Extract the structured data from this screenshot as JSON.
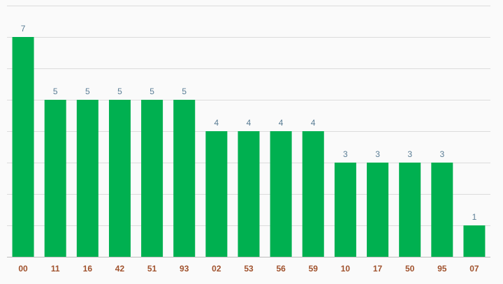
{
  "chart_data": {
    "type": "bar",
    "title": "",
    "xlabel": "",
    "ylabel": "",
    "categories": [
      "00",
      "11",
      "16",
      "42",
      "51",
      "93",
      "02",
      "53",
      "56",
      "59",
      "10",
      "17",
      "50",
      "95",
      "07"
    ],
    "values": [
      7,
      5,
      5,
      5,
      5,
      5,
      4,
      4,
      4,
      4,
      3,
      3,
      3,
      3,
      1
    ],
    "ylim": [
      0,
      8
    ],
    "grid": true,
    "legend": "none",
    "bar_color": "#00b050",
    "label_color": "#5a7d95",
    "tick_color": "#a0522d"
  }
}
